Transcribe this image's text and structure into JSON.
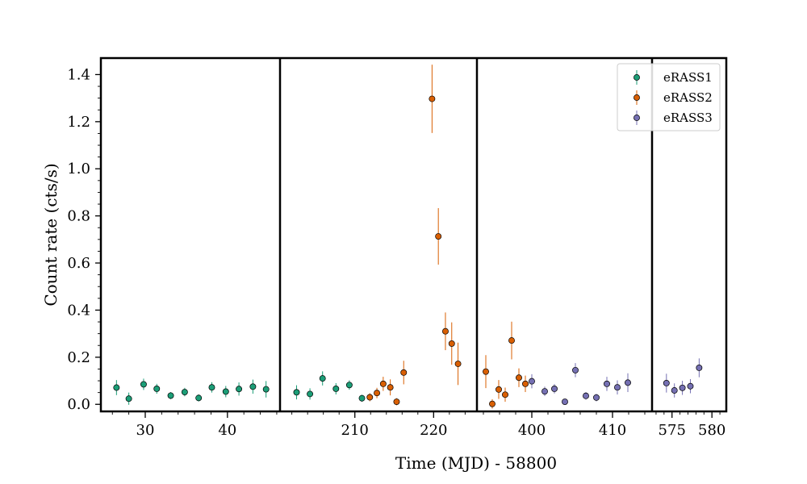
{
  "chart_data": {
    "type": "scatter",
    "title": "",
    "xlabel": "Time (MJD) - 58800",
    "ylabel": "Count rate (cts/s)",
    "ylim": [
      -0.03,
      1.47
    ],
    "yticks": [
      "0.0",
      "0.2",
      "0.4",
      "0.6",
      "0.8",
      "1.0",
      "1.2",
      "1.4"
    ],
    "legend_position": "top-right",
    "panels": [
      {
        "xlim": [
          24.6,
          46.4
        ],
        "xticks": [
          30,
          40
        ]
      },
      {
        "xlim": [
          200.5,
          225.5
        ],
        "xticks": [
          210,
          220
        ]
      },
      {
        "xlim": [
          393.2,
          414.9
        ],
        "xticks": [
          400,
          410
        ]
      },
      {
        "xlim": [
          572.5,
          581.8
        ],
        "xticks": [
          575,
          580
        ]
      }
    ],
    "series": [
      {
        "name": "eRASS1",
        "color": "#1b9e77",
        "points": [
          {
            "panel": 0,
            "x": 26.5,
            "y": 0.071,
            "err": 0.032
          },
          {
            "panel": 0,
            "x": 28.0,
            "y": 0.024,
            "err": 0.026
          },
          {
            "panel": 0,
            "x": 29.8,
            "y": 0.085,
            "err": 0.024
          },
          {
            "panel": 0,
            "x": 31.4,
            "y": 0.066,
            "err": 0.021
          },
          {
            "panel": 0,
            "x": 33.1,
            "y": 0.037,
            "err": 0.015
          },
          {
            "panel": 0,
            "x": 34.8,
            "y": 0.052,
            "err": 0.018
          },
          {
            "panel": 0,
            "x": 36.5,
            "y": 0.027,
            "err": 0.015
          },
          {
            "panel": 0,
            "x": 38.1,
            "y": 0.072,
            "err": 0.022
          },
          {
            "panel": 0,
            "x": 39.8,
            "y": 0.054,
            "err": 0.024
          },
          {
            "panel": 0,
            "x": 41.4,
            "y": 0.065,
            "err": 0.028
          },
          {
            "panel": 0,
            "x": 43.1,
            "y": 0.075,
            "err": 0.03
          },
          {
            "panel": 0,
            "x": 44.7,
            "y": 0.064,
            "err": 0.035
          },
          {
            "panel": 1,
            "x": 202.6,
            "y": 0.051,
            "err": 0.03
          },
          {
            "panel": 1,
            "x": 204.3,
            "y": 0.044,
            "err": 0.024
          },
          {
            "panel": 1,
            "x": 205.9,
            "y": 0.11,
            "err": 0.03
          },
          {
            "panel": 1,
            "x": 207.6,
            "y": 0.066,
            "err": 0.024
          },
          {
            "panel": 1,
            "x": 209.3,
            "y": 0.082,
            "err": 0.02
          },
          {
            "panel": 1,
            "x": 210.9,
            "y": 0.026,
            "err": 0.015
          }
        ]
      },
      {
        "name": "eRASS2",
        "color": "#d95f02",
        "points": [
          {
            "panel": 1,
            "x": 211.9,
            "y": 0.03,
            "err": 0.017
          },
          {
            "panel": 1,
            "x": 212.8,
            "y": 0.048,
            "err": 0.022
          },
          {
            "panel": 1,
            "x": 213.6,
            "y": 0.087,
            "err": 0.03
          },
          {
            "panel": 1,
            "x": 214.5,
            "y": 0.072,
            "err": 0.034
          },
          {
            "panel": 1,
            "x": 215.3,
            "y": 0.011,
            "err": 0.015
          },
          {
            "panel": 1,
            "x": 216.2,
            "y": 0.135,
            "err": 0.05
          },
          {
            "panel": 1,
            "x": 219.8,
            "y": 1.297,
            "err": 0.145
          },
          {
            "panel": 1,
            "x": 220.6,
            "y": 0.713,
            "err": 0.12
          },
          {
            "panel": 1,
            "x": 221.5,
            "y": 0.31,
            "err": 0.08
          },
          {
            "panel": 1,
            "x": 222.3,
            "y": 0.258,
            "err": 0.09
          },
          {
            "panel": 1,
            "x": 223.1,
            "y": 0.172,
            "err": 0.09
          },
          {
            "panel": 2,
            "x": 394.3,
            "y": 0.139,
            "err": 0.07
          },
          {
            "panel": 2,
            "x": 395.1,
            "y": 0.002,
            "err": 0.02
          },
          {
            "panel": 2,
            "x": 395.9,
            "y": 0.063,
            "err": 0.04
          },
          {
            "panel": 2,
            "x": 396.7,
            "y": 0.041,
            "err": 0.03
          },
          {
            "panel": 2,
            "x": 397.5,
            "y": 0.271,
            "err": 0.08
          },
          {
            "panel": 2,
            "x": 398.4,
            "y": 0.113,
            "err": 0.04
          },
          {
            "panel": 2,
            "x": 399.2,
            "y": 0.087,
            "err": 0.035
          }
        ]
      },
      {
        "name": "eRASS3",
        "color": "#7570b3",
        "points": [
          {
            "panel": 2,
            "x": 400.0,
            "y": 0.098,
            "err": 0.03
          },
          {
            "panel": 2,
            "x": 401.6,
            "y": 0.055,
            "err": 0.02
          },
          {
            "panel": 2,
            "x": 402.8,
            "y": 0.066,
            "err": 0.02
          },
          {
            "panel": 2,
            "x": 404.1,
            "y": 0.011,
            "err": 0.013
          },
          {
            "panel": 2,
            "x": 405.4,
            "y": 0.145,
            "err": 0.03
          },
          {
            "panel": 2,
            "x": 406.7,
            "y": 0.036,
            "err": 0.016
          },
          {
            "panel": 2,
            "x": 408.0,
            "y": 0.029,
            "err": 0.016
          },
          {
            "panel": 2,
            "x": 409.3,
            "y": 0.087,
            "err": 0.03
          },
          {
            "panel": 2,
            "x": 410.6,
            "y": 0.072,
            "err": 0.03
          },
          {
            "panel": 2,
            "x": 411.9,
            "y": 0.092,
            "err": 0.04
          },
          {
            "panel": 3,
            "x": 574.3,
            "y": 0.09,
            "err": 0.04
          },
          {
            "panel": 3,
            "x": 575.3,
            "y": 0.059,
            "err": 0.03
          },
          {
            "panel": 3,
            "x": 576.3,
            "y": 0.07,
            "err": 0.03
          },
          {
            "panel": 3,
            "x": 577.3,
            "y": 0.077,
            "err": 0.03
          },
          {
            "panel": 3,
            "x": 578.4,
            "y": 0.155,
            "err": 0.04
          }
        ]
      }
    ]
  }
}
